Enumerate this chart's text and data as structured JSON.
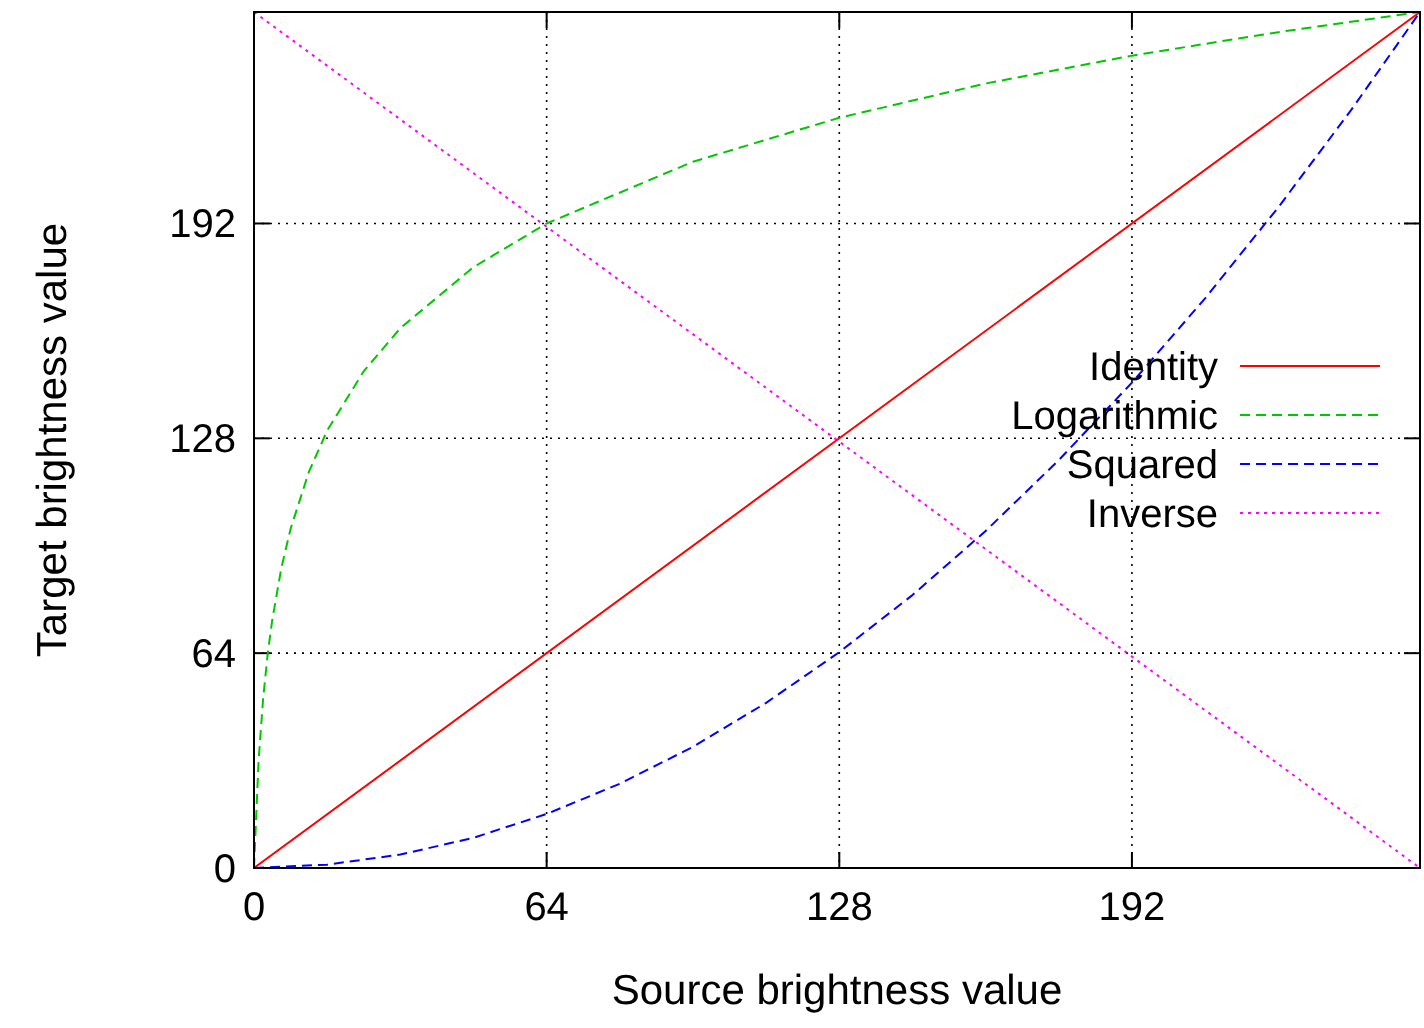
{
  "chart_data": {
    "type": "line",
    "xlabel": "Source brightness value",
    "ylabel": "Target brightness value",
    "xlim": [
      0,
      255
    ],
    "ylim": [
      0,
      255
    ],
    "xticks": [
      0,
      64,
      128,
      192
    ],
    "yticks": [
      0,
      64,
      128,
      192
    ],
    "grid": true,
    "legend": "right",
    "series": [
      {
        "name": "Identity",
        "color": "#ff0000",
        "line_style": "solid",
        "x": [
          0,
          255
        ],
        "values": [
          0,
          255
        ]
      },
      {
        "name": "Logarithmic",
        "color": "#00c800",
        "line_style": "dashed",
        "x": [
          0,
          1,
          2,
          3,
          4,
          6,
          8,
          12,
          16,
          24,
          32,
          48,
          64,
          96,
          128,
          160,
          192,
          224,
          255
        ],
        "values": [
          0,
          31.9,
          50.5,
          63.8,
          74,
          89.5,
          101,
          118,
          130.3,
          148,
          160.8,
          179,
          192,
          210.4,
          223.5,
          233.7,
          242,
          249,
          255
        ]
      },
      {
        "name": "Squared",
        "color": "#0000ff",
        "line_style": "dashed",
        "x": [
          0,
          16,
          32,
          48,
          64,
          80,
          96,
          112,
          128,
          144,
          160,
          176,
          192,
          208,
          224,
          240,
          255
        ],
        "values": [
          0,
          1,
          4,
          9,
          16.1,
          25.1,
          36.1,
          49.2,
          64.3,
          81.3,
          100.4,
          121.5,
          144.6,
          169.7,
          196.8,
          225.9,
          255
        ]
      },
      {
        "name": "Inverse",
        "color": "#ff00ff",
        "line_style": "dotted",
        "x": [
          0,
          255
        ],
        "values": [
          255,
          0
        ]
      }
    ]
  }
}
